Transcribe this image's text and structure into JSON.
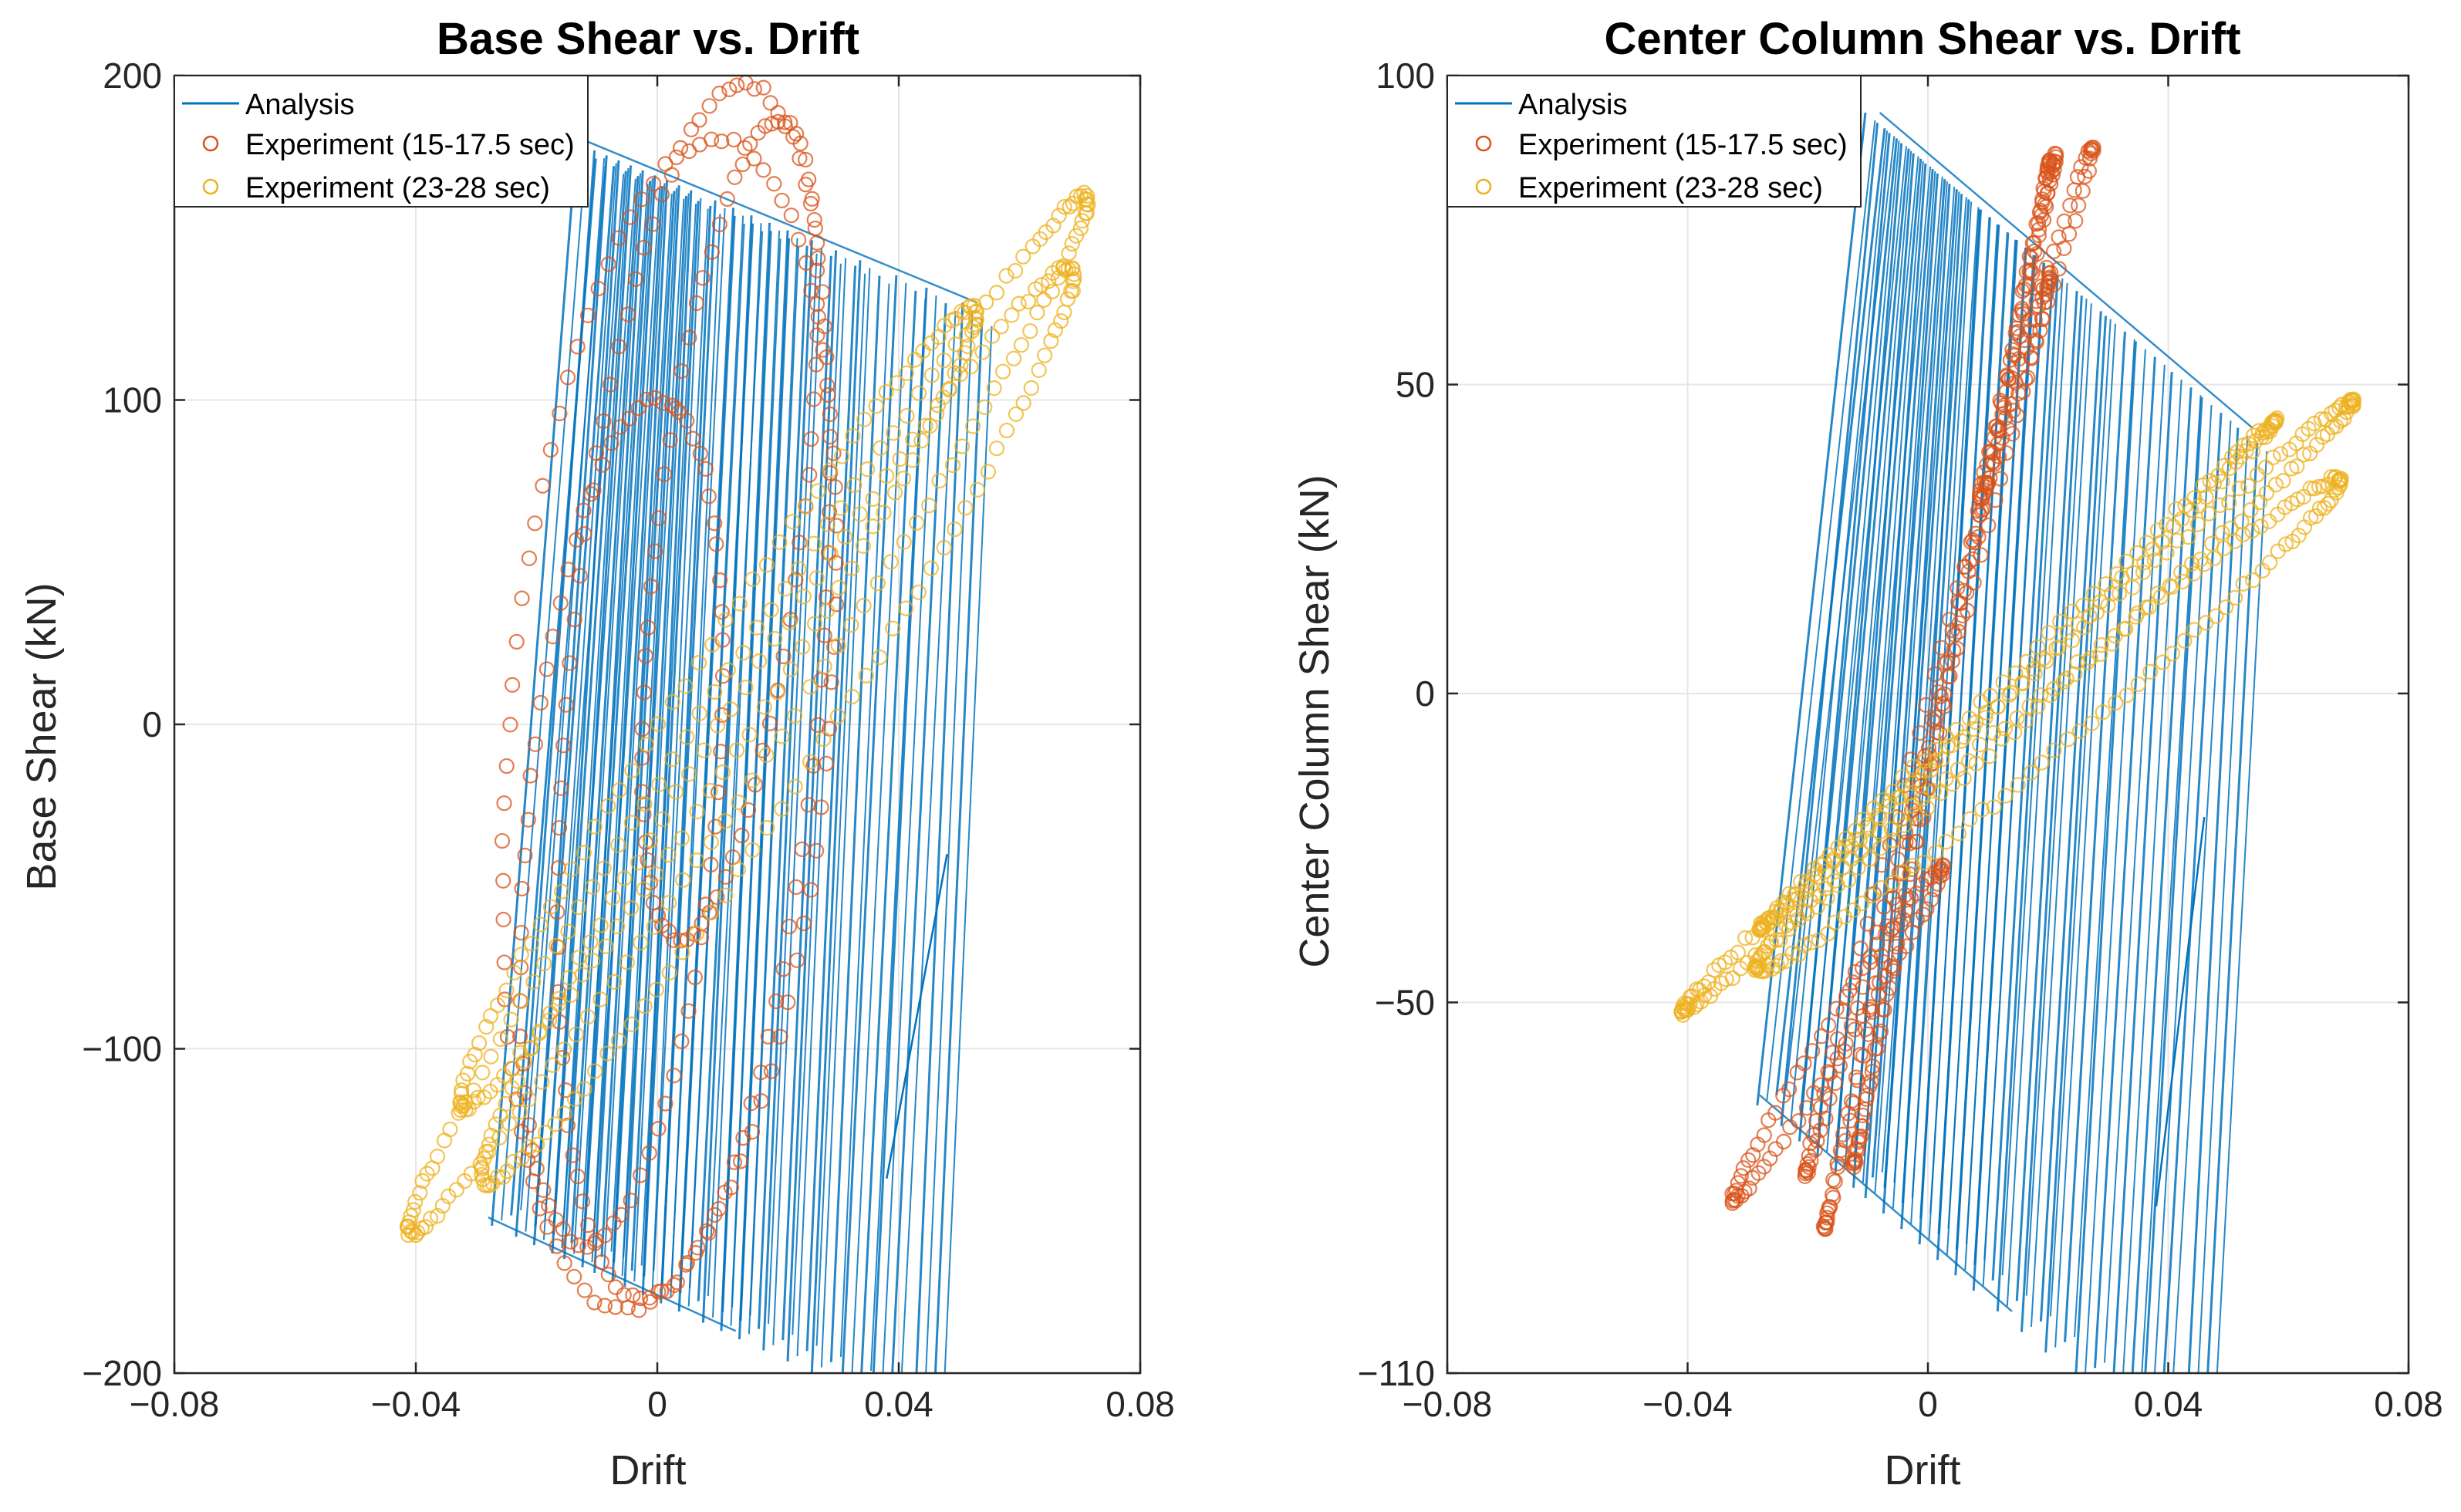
{
  "colors": {
    "analysis": "#0072BD",
    "exp1": "#D95319",
    "exp2": "#EDB120",
    "grid": "#e6e6e6",
    "axis": "#262626"
  },
  "chart_data": [
    {
      "type": "line",
      "title": "Base Shear vs. Drift",
      "xlabel": "Drift",
      "ylabel": "Base Shear (kN)",
      "xlim": [
        -0.08,
        0.08
      ],
      "ylim": [
        -200,
        200
      ],
      "xticks": [
        -0.08,
        -0.04,
        0,
        0.04,
        0.08
      ],
      "xtick_labels": [
        "−0.08",
        "−0.04",
        "0",
        "0.04",
        "0.08"
      ],
      "yticks": [
        -200,
        -100,
        0,
        100,
        200
      ],
      "ytick_labels": [
        "−200",
        "−100",
        "0",
        "100",
        "200"
      ],
      "grid": true,
      "legend_position": "top-left",
      "legend": [
        "Analysis",
        "Experiment (15-17.5 sec)",
        "Experiment (23-28 sec)"
      ],
      "series": [
        {
          "name": "Analysis",
          "kind": "hysteresis-line",
          "envelope_top": [
            [
              -0.012,
              180
            ],
            [
              0.053,
              130
            ]
          ],
          "envelope_bottom": [
            [
              -0.028,
              -152
            ],
            [
              0.013,
              -187
            ]
          ],
          "cycles": [
            {
              "x_top": -0.011,
              "x_bottom": -0.025
            },
            {
              "x_top": -0.008,
              "x_bottom": -0.021
            },
            {
              "x_top": -0.006,
              "x_bottom": -0.018
            },
            {
              "x_top": -0.004,
              "x_bottom": -0.015
            },
            {
              "x_top": -0.002,
              "x_bottom": -0.013
            },
            {
              "x_top": 0.0,
              "x_bottom": -0.01
            },
            {
              "x_top": 0.002,
              "x_bottom": -0.008
            },
            {
              "x_top": 0.004,
              "x_bottom": -0.005
            },
            {
              "x_top": 0.006,
              "x_bottom": -0.003
            },
            {
              "x_top": 0.008,
              "x_bottom": 0.0
            },
            {
              "x_top": 0.012,
              "x_bottom": 0.003
            },
            {
              "x_top": 0.015,
              "x_bottom": 0.006
            },
            {
              "x_top": 0.018,
              "x_bottom": 0.01
            },
            {
              "x_top": 0.021,
              "x_bottom": 0.013
            },
            {
              "x_top": 0.024,
              "x_bottom": 0.016
            },
            {
              "x_top": 0.028,
              "x_bottom": 0.02
            },
            {
              "x_top": 0.032,
              "x_bottom": 0.024
            },
            {
              "x_top": 0.036,
              "x_bottom": 0.028
            },
            {
              "x_top": 0.042,
              "x_bottom": 0.033
            },
            {
              "x_top": 0.047,
              "x_bottom": 0.038
            },
            {
              "x_top": 0.053,
              "x_bottom": 0.045
            }
          ],
          "tail": [
            [
              0.038,
              -140
            ],
            [
              0.048,
              -40
            ]
          ]
        },
        {
          "name": "Experiment (15-17.5 sec)",
          "kind": "loops",
          "loops": [
            {
              "cx": 0.002,
              "cy": 0,
              "ax": 0.027,
              "ay": 12,
              "bx": 0.006,
              "by": 180,
              "samples": 90
            },
            {
              "cx": 0.006,
              "cy": 10,
              "ax": 0.022,
              "ay": 30,
              "bx": 0.005,
              "by": 185,
              "samples": 90
            },
            {
              "cx": -0.006,
              "cy": -30,
              "ax": 0.016,
              "ay": 10,
              "bx": 0.005,
              "by": 130,
              "samples": 70
            },
            {
              "cx": 0.012,
              "cy": 60,
              "ax": 0.014,
              "ay": 40,
              "bx": 0.004,
              "by": 120,
              "samples": 70
            }
          ]
        },
        {
          "name": "Experiment (23-28 sec)",
          "kind": "loops",
          "loops": [
            {
              "cx": 0.015,
              "cy": 3,
              "ax": 0.055,
              "ay": 150,
              "bx": 0.012,
              "by": 55,
              "samples": 150
            },
            {
              "cx": 0.02,
              "cy": 0,
              "ax": 0.048,
              "ay": 130,
              "bx": 0.01,
              "by": 55,
              "samples": 130
            },
            {
              "cx": 0.01,
              "cy": 5,
              "ax": 0.042,
              "ay": 115,
              "bx": 0.008,
              "by": 45,
              "samples": 120
            }
          ]
        }
      ]
    },
    {
      "type": "line",
      "title": "Center Column Shear vs. Drift",
      "xlabel": "Drift",
      "ylabel": "Center Column Shear (kN)",
      "xlim": [
        -0.08,
        0.08
      ],
      "ylim": [
        -110,
        100
      ],
      "xticks": [
        -0.08,
        -0.04,
        0,
        0.04,
        0.08
      ],
      "xtick_labels": [
        "−0.08",
        "−0.04",
        "0",
        "0.04",
        "0.08"
      ],
      "yticks": [
        -110,
        -50,
        0,
        50,
        100
      ],
      "ytick_labels": [
        "−110",
        "−50",
        "0",
        "50",
        "100"
      ],
      "grid": true,
      "legend_position": "top-left",
      "legend": [
        "Analysis",
        "Experiment (15-17.5 sec)",
        "Experiment (23-28 sec)"
      ],
      "series": [
        {
          "name": "Analysis",
          "kind": "hysteresis-line",
          "envelope_top": [
            [
              -0.008,
              94
            ],
            [
              0.054,
              43
            ]
          ],
          "envelope_bottom": [
            [
              -0.028,
              -65
            ],
            [
              0.014,
              -100
            ]
          ],
          "cycles": [
            {
              "x_top": -0.008,
              "x_bottom": -0.026
            },
            {
              "x_top": -0.006,
              "x_bottom": -0.022
            },
            {
              "x_top": -0.004,
              "x_bottom": -0.019
            },
            {
              "x_top": -0.002,
              "x_bottom": -0.016
            },
            {
              "x_top": 0.0,
              "x_bottom": -0.013
            },
            {
              "x_top": 0.002,
              "x_bottom": -0.01
            },
            {
              "x_top": 0.004,
              "x_bottom": -0.008
            },
            {
              "x_top": 0.006,
              "x_bottom": -0.005
            },
            {
              "x_top": 0.008,
              "x_bottom": -0.002
            },
            {
              "x_top": 0.011,
              "x_bottom": 0.001
            },
            {
              "x_top": 0.014,
              "x_bottom": 0.004
            },
            {
              "x_top": 0.017,
              "x_bottom": 0.007
            },
            {
              "x_top": 0.02,
              "x_bottom": 0.01
            },
            {
              "x_top": 0.024,
              "x_bottom": 0.014
            },
            {
              "x_top": 0.028,
              "x_bottom": 0.018
            },
            {
              "x_top": 0.032,
              "x_bottom": 0.022
            },
            {
              "x_top": 0.037,
              "x_bottom": 0.027
            },
            {
              "x_top": 0.043,
              "x_bottom": 0.033
            },
            {
              "x_top": 0.048,
              "x_bottom": 0.038
            },
            {
              "x_top": 0.054,
              "x_bottom": 0.045
            }
          ],
          "tail": [
            [
              0.038,
              -83
            ],
            [
              0.046,
              -20
            ]
          ]
        },
        {
          "name": "Experiment (15-17.5 sec)",
          "kind": "loops",
          "loops": [
            {
              "cx": 0.004,
              "cy": 5,
              "ax": 0.016,
              "ay": 80,
              "bx": 0.003,
              "by": 14,
              "samples": 110
            },
            {
              "cx": 0.002,
              "cy": 0,
              "ax": 0.019,
              "ay": 86,
              "bx": 0.003,
              "by": 12,
              "samples": 110
            },
            {
              "cx": 0.0,
              "cy": -5,
              "ax": 0.02,
              "ay": 72,
              "bx": 0.004,
              "by": 10,
              "samples": 100
            },
            {
              "cx": -0.015,
              "cy": -55,
              "ax": 0.017,
              "ay": 25,
              "bx": 0.004,
              "by": 10,
              "samples": 80
            },
            {
              "cx": 0.018,
              "cy": 60,
              "ax": 0.009,
              "ay": 28,
              "bx": 0.003,
              "by": 6,
              "samples": 60
            }
          ]
        },
        {
          "name": "Experiment (23-28 sec)",
          "kind": "loops",
          "loops": [
            {
              "cx": 0.015,
              "cy": -2,
              "ax": 0.055,
              "ay": 48,
              "bx": 0.01,
              "by": 12,
              "samples": 170
            },
            {
              "cx": 0.02,
              "cy": -5,
              "ax": 0.048,
              "ay": 38,
              "bx": 0.008,
              "by": 12,
              "samples": 150
            },
            {
              "cx": 0.015,
              "cy": 3,
              "ax": 0.042,
              "ay": 40,
              "bx": 0.009,
              "by": 10,
              "samples": 140
            }
          ]
        }
      ]
    }
  ]
}
